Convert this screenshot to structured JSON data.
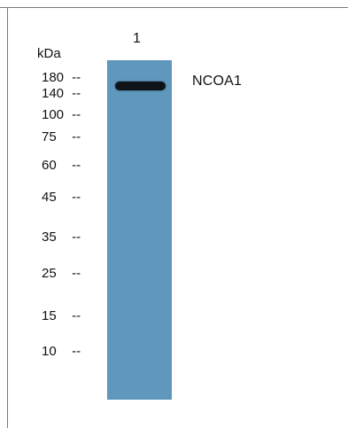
{
  "blot": {
    "lane_number": "1",
    "unit": "kDa",
    "band_label": "NCOA1",
    "lane_color": "#5f97bd",
    "band_color": "#0f1418"
  },
  "markers": [
    {
      "value": "180",
      "dash": "--"
    },
    {
      "value": "140",
      "dash": "--"
    },
    {
      "value": "100",
      "dash": "--"
    },
    {
      "value": "75",
      "dash": "--"
    },
    {
      "value": "60",
      "dash": "--"
    },
    {
      "value": "45",
      "dash": "--"
    },
    {
      "value": "35",
      "dash": "--"
    },
    {
      "value": "25",
      "dash": "--"
    },
    {
      "value": "15",
      "dash": "--"
    },
    {
      "value": "10",
      "dash": "--"
    }
  ]
}
